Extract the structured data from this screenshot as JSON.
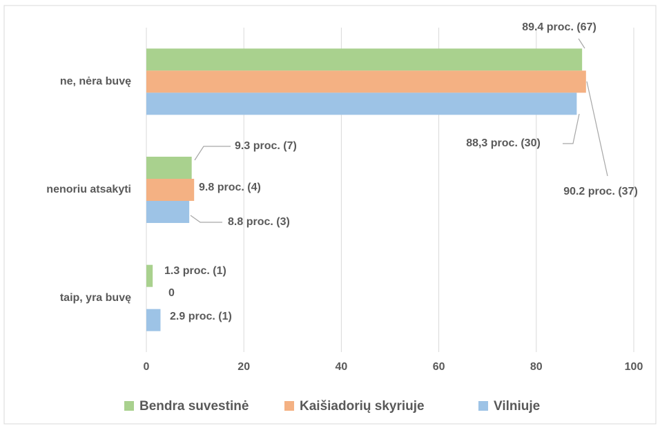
{
  "chart_data": {
    "type": "hbar",
    "categories": [
      "ne, nėra buvę",
      "nenoriu atsakyti",
      "taip, yra buvę"
    ],
    "series": [
      {
        "name": "Bendra suvestinė",
        "color": "#a9d18e",
        "values": [
          89.4,
          9.3,
          1.3
        ],
        "value_labels": [
          "89.4 proc. (67)",
          "9.3 proc. (7)",
          "1.3 proc. (1)"
        ]
      },
      {
        "name": "Kaišiadorių skyriuje",
        "color": "#f4b183",
        "values": [
          90.2,
          9.8,
          0
        ],
        "value_labels": [
          "90.2 proc. (37)",
          "9.8 proc. (4)",
          "0"
        ]
      },
      {
        "name": "Vilniuje",
        "color": "#9dc3e6",
        "values": [
          88.3,
          8.8,
          2.9
        ],
        "value_labels": [
          "88,3 proc. (30)",
          "8.8 proc. (3)",
          "2.9 proc. (1)"
        ]
      }
    ],
    "xlim": [
      0,
      100
    ],
    "xticks": [
      0,
      20,
      40,
      60,
      80,
      100
    ],
    "grid": true,
    "legend": "bottom"
  }
}
